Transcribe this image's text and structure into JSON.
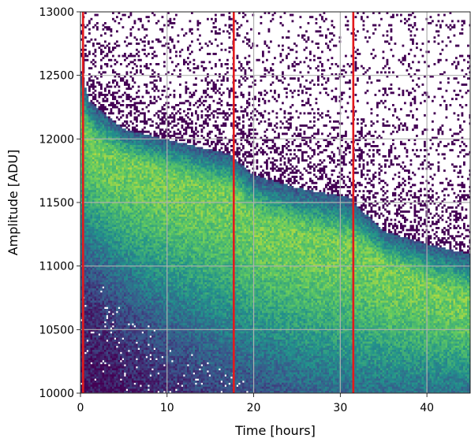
{
  "chart_data": {
    "type": "heatmap",
    "title": "",
    "xlabel": "Time [hours]",
    "ylabel": "Amplitude [ADU]",
    "xlim": [
      0,
      45
    ],
    "ylim": [
      10000,
      13000
    ],
    "x_ticks": [
      0,
      10,
      20,
      30,
      40
    ],
    "y_ticks": [
      10000,
      10500,
      11000,
      11500,
      12000,
      12500,
      13000
    ],
    "grid": true,
    "colormap": "viridis",
    "colors": {
      "low": "#440154",
      "mid_low": "#3b528b",
      "mid": "#21918c",
      "mid_high": "#5ec962",
      "high": "#fde725",
      "marker": "#e31a1c",
      "grid": "#b0b0b0",
      "background": "#ffffff"
    },
    "vertical_lines_x": [
      0.3,
      17.7,
      31.5
    ],
    "upper_edge_profile": {
      "x": [
        0,
        1,
        5,
        10,
        15,
        17.7,
        17.8,
        20,
        25,
        31.5,
        31.6,
        35,
        40,
        45
      ],
      "y": [
        12550,
        12300,
        12080,
        12000,
        11920,
        11880,
        11850,
        11720,
        11620,
        11540,
        11500,
        11280,
        11180,
        11100
      ]
    },
    "peak_density_profile": {
      "x": [
        0,
        2,
        5,
        10,
        15,
        17.7,
        20,
        25,
        31.5,
        35,
        40,
        45
      ],
      "y": [
        12100,
        11900,
        11820,
        11700,
        11600,
        11550,
        11350,
        11250,
        11150,
        11000,
        10850,
        10720
      ]
    },
    "lower_edge_profile": {
      "x": [
        0,
        5,
        10,
        15,
        20,
        25,
        30,
        35,
        40,
        45
      ],
      "y": [
        11200,
        10900,
        10650,
        10450,
        10300,
        10150,
        10050,
        10000,
        10000,
        10000
      ]
    }
  }
}
